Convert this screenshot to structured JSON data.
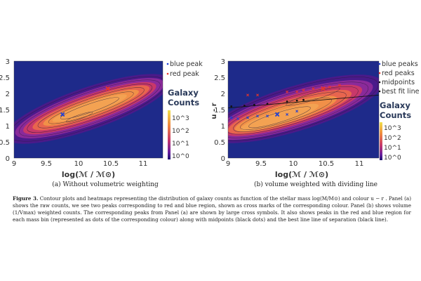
{
  "panel_a": {
    "legend": [
      "blue peak",
      "red peak"
    ],
    "colorbar_title_1": "Galaxy",
    "colorbar_title_2": "Counts",
    "colorbar_ticks": [
      "10^3",
      "10^2",
      "10^1",
      "10^0"
    ],
    "x_ticks": [
      "9",
      "9.5",
      "10",
      "10.5",
      "11"
    ],
    "y_ticks": [
      "3",
      "2.5",
      "2",
      "1.5",
      "1",
      "0.5",
      "0"
    ],
    "xlabel": "log(ℳ / ℳ⊙)",
    "caption": "(a) Without volumetric weighting"
  },
  "panel_b": {
    "legend": [
      "blue peaks",
      "red peaks",
      "midpoints",
      "best fit line"
    ],
    "colorbar_title_1": "Galaxy",
    "colorbar_title_2": "Counts",
    "colorbar_ticks": [
      "10^3",
      "10^2",
      "10^1",
      "10^0"
    ],
    "x_ticks": [
      "9",
      "9.5",
      "10",
      "10.5",
      "11"
    ],
    "y_ticks": [
      "3",
      "2.5",
      "2",
      "1.5",
      "1",
      "0.5",
      "0"
    ],
    "xlabel": "log(ℳ / ℳ⊙)",
    "ylabel": "u - r",
    "caption": "(b) volume weighted with dividing line"
  },
  "figure_label": "Figure 3.",
  "figure_text": "Contour plots and heatmaps representing the distribution of galaxy counts as function of the stellar mass log(M/M⊙) and colour u − r . Panel (a) shows the raw counts, we see two peaks corresponding to red and blue region, shown as cross marks of the corresponding colour. Panel (b) shows volume (1/Vmax) weighted counts. The corresponding peaks from Panel (a) are shown by large cross symbols. It also shows peaks in the red and blue region for each mass bin (represented as dots of the corresponding colour) along with midpoints (black dots) and the best line line of separation (black line).",
  "colors": {
    "background": "#1e2a8a",
    "blue_peak": "#1f3fd6",
    "red_peak": "#e8352a",
    "midpoint": "#111111"
  },
  "chart_data": [
    {
      "type": "heatmap",
      "title": "",
      "xlabel": "log(ℳ / ℳ⊙)",
      "ylabel": "",
      "xlim": [
        9,
        11.3
      ],
      "ylim": [
        0,
        3
      ],
      "blue_peak": {
        "x": 9.75,
        "y": 1.35
      },
      "red_peak": {
        "x": 10.45,
        "y": 2.15
      }
    },
    {
      "type": "heatmap",
      "title": "",
      "xlabel": "log(ℳ / ℳ⊙)",
      "ylabel": "u - r",
      "xlim": [
        9,
        11.3
      ],
      "ylim": [
        0,
        3
      ],
      "blue_peak_large": {
        "x": 9.75,
        "y": 1.35
      },
      "red_peak_large": {
        "x": 10.45,
        "y": 2.15
      },
      "blue_peaks": [
        {
          "x": 9.05,
          "y": 1.25
        },
        {
          "x": 9.15,
          "y": 1.22
        },
        {
          "x": 9.3,
          "y": 1.25
        },
        {
          "x": 9.45,
          "y": 1.3
        },
        {
          "x": 9.6,
          "y": 1.3
        },
        {
          "x": 9.75,
          "y": 1.35
        },
        {
          "x": 9.9,
          "y": 1.35
        },
        {
          "x": 10.05,
          "y": 1.45
        }
      ],
      "red_peaks": [
        {
          "x": 9.3,
          "y": 1.95
        },
        {
          "x": 9.45,
          "y": 1.95
        },
        {
          "x": 9.9,
          "y": 2.05
        },
        {
          "x": 10.05,
          "y": 2.05
        },
        {
          "x": 10.15,
          "y": 2.1
        },
        {
          "x": 10.3,
          "y": 2.15
        },
        {
          "x": 10.55,
          "y": 2.2
        },
        {
          "x": 10.7,
          "y": 2.25
        }
      ],
      "midpoints": [
        {
          "x": 9.05,
          "y": 1.6
        },
        {
          "x": 9.25,
          "y": 1.62
        },
        {
          "x": 9.4,
          "y": 1.65
        },
        {
          "x": 9.6,
          "y": 1.68
        },
        {
          "x": 9.9,
          "y": 1.75
        },
        {
          "x": 10.05,
          "y": 1.78
        },
        {
          "x": 10.15,
          "y": 1.8
        }
      ],
      "best_fit_line": {
        "x": [
          9,
          11.3
        ],
        "y": [
          1.55,
          1.95
        ]
      }
    }
  ]
}
